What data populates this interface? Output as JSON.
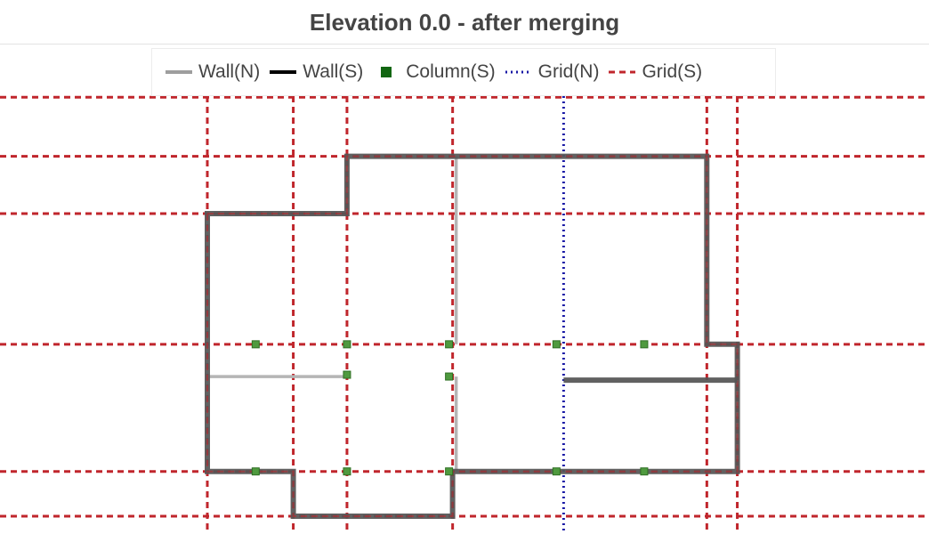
{
  "title": "Elevation 0.0 - after merging",
  "colors": {
    "wall_n": "#b5b5b5",
    "wall_s": "#555555",
    "column_fill": "#4f9a3f",
    "column_edge": "#2f6f24",
    "grid_n": "#1a1aa6",
    "grid_s": "#c0262c",
    "legend_wall_n": "#9e9e9e",
    "legend_wall_s": "#000000",
    "legend_column": "#126612"
  },
  "legend": [
    {
      "label": "Wall(N)",
      "icon": "solid-line",
      "color": "#9e9e9e",
      "dash": "",
      "width": 4
    },
    {
      "label": "Wall(S)",
      "icon": "solid-line",
      "color": "#000000",
      "dash": "",
      "width": 4
    },
    {
      "label": "Column(S)",
      "icon": "square-marker",
      "color": "#126612",
      "dash": "",
      "width": 0
    },
    {
      "label": "Grid(N)",
      "icon": "dotted-line",
      "color": "#1a1aa6",
      "dash": "2 4",
      "width": 3
    },
    {
      "label": "Grid(S)",
      "icon": "dashed-line",
      "color": "#c0262c",
      "dash": "7 5",
      "width": 3
    }
  ],
  "chart_data": {
    "type": "scatter",
    "title": "Elevation 0.0 - after merging",
    "series_names": [
      "Wall(N)",
      "Wall(S)",
      "Column(S)",
      "Grid(N)",
      "Grid(S)"
    ],
    "grid_s_vertical_x": [
      0,
      9.6,
      15.6,
      27.4,
      55.8,
      59.2
    ],
    "grid_s_horizontal_y": [
      0,
      5,
      19.2,
      33.8,
      40.2,
      46.8
    ],
    "grid_n_vertical_x": [
      39.8
    ],
    "wall_s_outline": [
      [
        0,
        33.8
      ],
      [
        15.6,
        33.8
      ],
      [
        15.6,
        40.2
      ],
      [
        55.8,
        40.2
      ],
      [
        55.8,
        19.2
      ],
      [
        59.2,
        19.2
      ],
      [
        59.2,
        5
      ],
      [
        27.4,
        5
      ],
      [
        27.4,
        0
      ],
      [
        9.6,
        0
      ],
      [
        9.6,
        5
      ],
      [
        0,
        5
      ],
      [
        0,
        33.8
      ]
    ],
    "wall_s_segments": [
      [
        [
          39.8,
          15.2
        ],
        [
          59.2,
          15.2
        ]
      ]
    ],
    "wall_n_segments": [
      [
        [
          0,
          15.6
        ],
        [
          15.6,
          15.6
        ]
      ],
      [
        [
          27.8,
          40.2
        ],
        [
          27.8,
          19.2
        ]
      ],
      [
        [
          27.8,
          5
        ],
        [
          27.8,
          15.6
        ]
      ]
    ],
    "columns": [
      [
        5.4,
        19.2
      ],
      [
        15.6,
        19.2
      ],
      [
        27,
        19.2
      ],
      [
        39,
        19.2
      ],
      [
        48.8,
        19.2
      ],
      [
        15.6,
        15.8
      ],
      [
        27,
        15.6
      ],
      [
        5.4,
        5
      ],
      [
        15.6,
        5
      ],
      [
        27,
        5
      ],
      [
        39,
        5
      ],
      [
        48.8,
        5
      ]
    ]
  }
}
